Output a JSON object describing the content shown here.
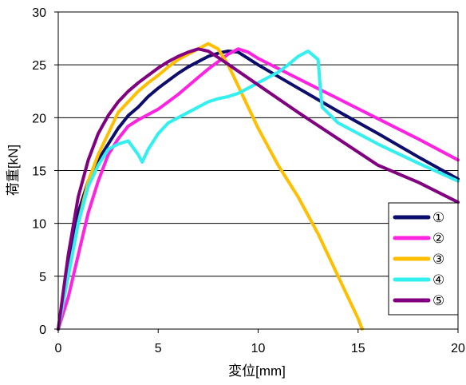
{
  "chart_data": {
    "type": "line",
    "xlabel": "変位[mm]",
    "ylabel": "荷重[kN]",
    "xlim": [
      0,
      20
    ],
    "ylim": [
      0,
      30
    ],
    "x_ticks": [
      "0",
      "5",
      "10",
      "15",
      "20"
    ],
    "y_ticks": [
      "0",
      "5",
      "10",
      "15",
      "20",
      "25",
      "30"
    ],
    "grid": "horizontal",
    "legend_position": "right",
    "series": [
      {
        "name": "①",
        "color": "#0d0d6b",
        "x": [
          0,
          0.5,
          1,
          1.5,
          2,
          2.5,
          3,
          3.5,
          4,
          4.5,
          5,
          5.5,
          6,
          6.5,
          7,
          7.5,
          8,
          8.5,
          9,
          9.5,
          10,
          12,
          14,
          16,
          18,
          20
        ],
        "y": [
          0,
          6,
          11,
          14,
          16,
          17.5,
          19,
          20.2,
          21,
          22,
          22.8,
          23.5,
          24.2,
          24.8,
          25.3,
          25.8,
          26.1,
          26.3,
          26.2,
          25.6,
          25,
          22.8,
          20.6,
          18.5,
          16.3,
          14.2
        ]
      },
      {
        "name": "②",
        "color": "#ff22e0",
        "x": [
          0,
          0.5,
          1,
          1.5,
          2,
          2.5,
          3,
          3.5,
          4,
          4.5,
          5,
          5.5,
          6,
          6.5,
          7,
          7.5,
          8,
          8.5,
          9,
          9.5,
          10,
          12,
          14,
          16,
          18,
          20
        ],
        "y": [
          0,
          3,
          7,
          11,
          14,
          16.5,
          18,
          19.2,
          19.8,
          20.3,
          20.8,
          21.5,
          22.2,
          23,
          23.8,
          24.6,
          25.3,
          26,
          26.5,
          26.2,
          25.6,
          23.7,
          21.8,
          19.9,
          18,
          16
        ]
      },
      {
        "name": "③",
        "color": "#ffbf00",
        "x": [
          0,
          0.5,
          1,
          1.5,
          2,
          2.5,
          3,
          3.5,
          4,
          4.5,
          5,
          5.5,
          6,
          6.5,
          7,
          7.5,
          8,
          8.5,
          9,
          10,
          11,
          12,
          13,
          14,
          14.5,
          15,
          15.2
        ],
        "y": [
          0,
          5,
          10,
          14,
          16.5,
          18.5,
          20.5,
          21.5,
          22.5,
          23.3,
          24,
          24.8,
          25.5,
          26,
          26.5,
          27,
          26.5,
          25,
          23,
          19,
          15.5,
          12.5,
          9,
          5,
          3,
          1,
          0
        ]
      },
      {
        "name": "④",
        "color": "#33f0f0",
        "x": [
          0,
          0.5,
          1,
          1.5,
          2,
          2.5,
          3,
          3.5,
          4,
          4.2,
          4.5,
          5,
          5.5,
          6,
          6.5,
          7,
          7.5,
          8,
          8.5,
          9,
          9.5,
          10,
          10.5,
          11,
          11.5,
          12,
          12.5,
          13,
          13.1,
          13.2,
          14,
          16,
          18,
          20
        ],
        "y": [
          0,
          5,
          10,
          13.5,
          15.5,
          17,
          17.5,
          17.8,
          16.5,
          15.8,
          17,
          18.5,
          19.5,
          20,
          20.5,
          21,
          21.5,
          21.8,
          22,
          22.3,
          22.8,
          23.3,
          23.8,
          24.3,
          25,
          25.8,
          26.3,
          25.5,
          23,
          21,
          19.5,
          17.5,
          15.7,
          14
        ]
      },
      {
        "name": "⑤",
        "color": "#800080",
        "x": [
          0,
          0.5,
          1,
          1.5,
          2,
          2.5,
          3,
          3.5,
          4,
          4.5,
          5,
          5.5,
          6,
          6.5,
          7,
          7.5,
          8,
          10,
          12,
          14,
          16,
          18,
          20
        ],
        "y": [
          0,
          7,
          12.5,
          16,
          18.5,
          20.2,
          21.5,
          22.5,
          23.3,
          24,
          24.7,
          25.3,
          25.8,
          26.2,
          26.5,
          26.3,
          25.7,
          23.1,
          20.5,
          18,
          15.5,
          13.9,
          12
        ]
      }
    ]
  }
}
